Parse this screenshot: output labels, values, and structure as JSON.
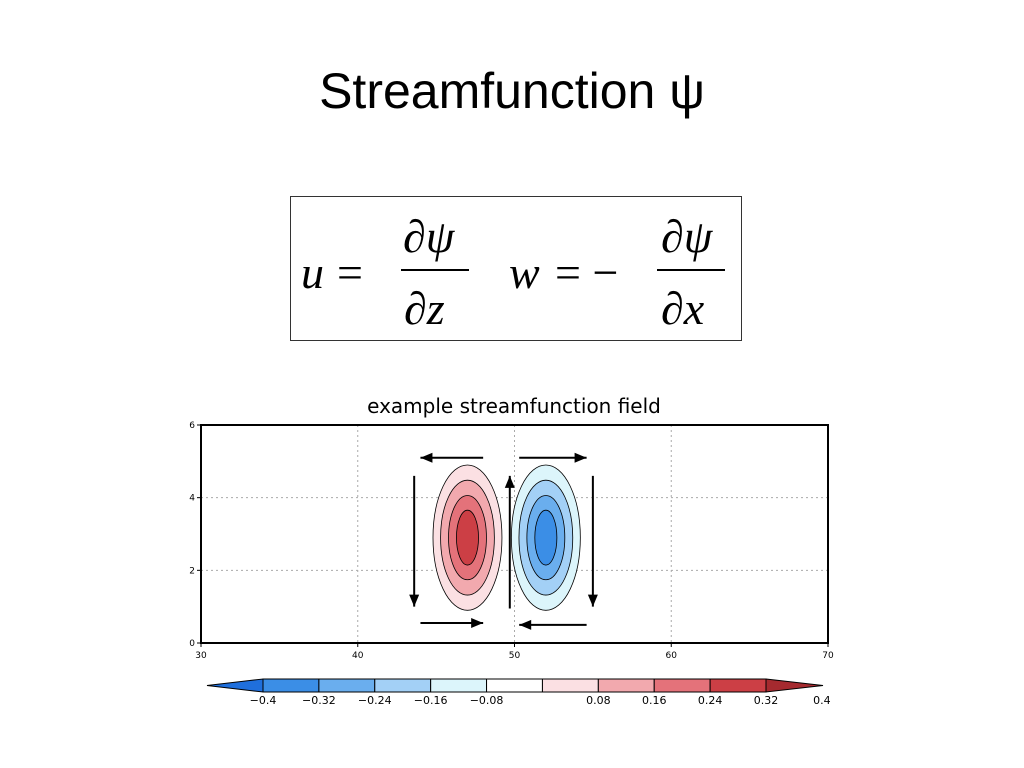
{
  "slide": {
    "title": "Streamfunction ψ"
  },
  "equations": {
    "u_lhs": "u",
    "u_eq": "=",
    "u_num": "∂ψ",
    "u_den": "∂z",
    "w_lhs": "w",
    "w_eq": "= −",
    "w_num": "∂ψ",
    "w_den": "∂x"
  },
  "chart_data": {
    "type": "heatmap",
    "title": "example streamfunction field",
    "xlim": [
      30,
      70
    ],
    "ylim": [
      0,
      6
    ],
    "x_ticks": [
      30,
      40,
      50,
      60,
      70
    ],
    "y_ticks": [
      0,
      2,
      4,
      6
    ],
    "grid": true,
    "features": [
      {
        "name": "positive cell",
        "center": [
          47,
          2.9
        ],
        "max": 0.4,
        "halfwidth_x": 2.2,
        "halfwidth_y": 2.0
      },
      {
        "name": "negative cell",
        "center": [
          52,
          2.9
        ],
        "min": -0.4,
        "halfwidth_x": 2.2,
        "halfwidth_y": 2.0
      }
    ],
    "flow_arrows": [
      {
        "from": [
          48,
          5.1
        ],
        "to": [
          44,
          5.1
        ]
      },
      {
        "from": [
          43.6,
          4.6
        ],
        "to": [
          43.6,
          1.0
        ]
      },
      {
        "from": [
          44,
          0.55
        ],
        "to": [
          48,
          0.55
        ]
      },
      {
        "from": [
          49.7,
          0.95
        ],
        "to": [
          49.7,
          4.6
        ]
      },
      {
        "from": [
          50.3,
          5.1
        ],
        "to": [
          54.6,
          5.1
        ]
      },
      {
        "from": [
          55,
          4.6
        ],
        "to": [
          55,
          1.0
        ]
      },
      {
        "from": [
          54.6,
          0.5
        ],
        "to": [
          50.3,
          0.5
        ]
      }
    ],
    "colorbar": {
      "levels": [
        "-0.4",
        "-0.32",
        "-0.24",
        "-0.16",
        "-0.08",
        "0.08",
        "0.16",
        "0.24",
        "0.32",
        "0.4"
      ],
      "colors": [
        "#1f6fdc",
        "#3b8ee6",
        "#6aaeee",
        "#a3d0f6",
        "#dcf5fb",
        "#ffffff",
        "#fbe0e3",
        "#f2a9ae",
        "#e4727a",
        "#cc3f45",
        "#a52a2f"
      ]
    }
  }
}
